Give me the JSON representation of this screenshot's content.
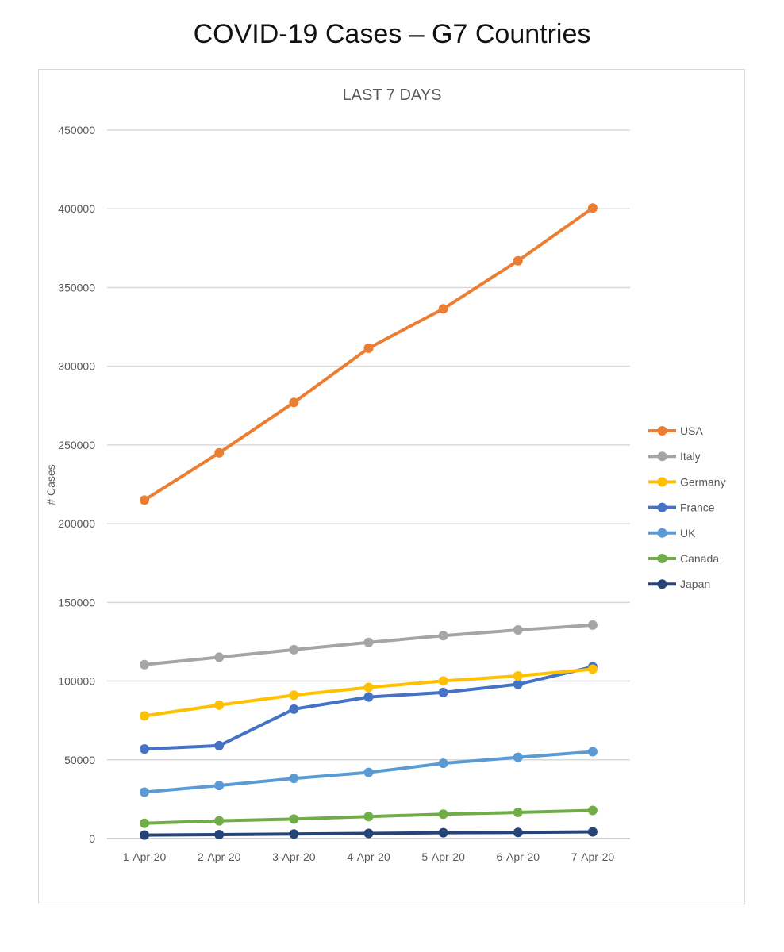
{
  "page": {
    "title": "COVID-19 Cases – G7 Countries"
  },
  "chart_data": {
    "type": "line",
    "title": "LAST 7 DAYS",
    "xlabel": "",
    "ylabel": "# Cases",
    "ylim": [
      0,
      450000
    ],
    "yticks": [
      0,
      50000,
      100000,
      150000,
      200000,
      250000,
      300000,
      350000,
      400000,
      450000
    ],
    "ytick_labels": [
      "0",
      "50000",
      "100000",
      "150000",
      "200000",
      "250000",
      "300000",
      "350000",
      "400000",
      "450000"
    ],
    "grid": "horizontal",
    "legend_position": "right",
    "categories": [
      "1-Apr-20",
      "2-Apr-20",
      "3-Apr-20",
      "4-Apr-20",
      "5-Apr-20",
      "6-Apr-20",
      "7-Apr-20"
    ],
    "series": [
      {
        "name": "USA",
        "color": "#ed7d31",
        "values": [
          215000,
          245000,
          277000,
          311500,
          336500,
          367000,
          400500
        ]
      },
      {
        "name": "Italy",
        "color": "#a5a5a5",
        "values": [
          110500,
          115200,
          120000,
          124600,
          128900,
          132500,
          135600
        ]
      },
      {
        "name": "Germany",
        "color": "#ffc000",
        "values": [
          77900,
          84800,
          91100,
          96000,
          100100,
          103300,
          107600
        ]
      },
      {
        "name": "France",
        "color": "#4472c4",
        "values": [
          56900,
          59000,
          82200,
          89900,
          92800,
          98000,
          109100
        ]
      },
      {
        "name": "UK",
        "color": "#5b9bd5",
        "values": [
          29500,
          33700,
          38200,
          42000,
          47800,
          51600,
          55200
        ]
      },
      {
        "name": "Canada",
        "color": "#70ad47",
        "values": [
          9700,
          11300,
          12400,
          14000,
          15500,
          16600,
          17900
        ]
      },
      {
        "name": "Japan",
        "color": "#264478",
        "values": [
          2200,
          2500,
          2900,
          3300,
          3700,
          3900,
          4300
        ]
      }
    ]
  }
}
